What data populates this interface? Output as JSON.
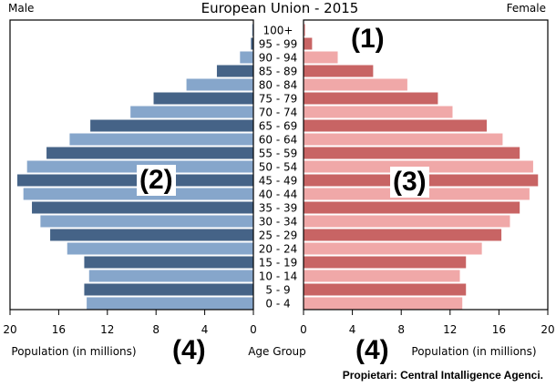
{
  "chart_data": {
    "type": "bar",
    "orientation": "horizontal",
    "subtype": "population-pyramid",
    "title": "European Union - 2015",
    "categories": [
      "100+",
      "95 - 99",
      "90 - 94",
      "85 - 89",
      "80 - 84",
      "75 - 79",
      "70 - 74",
      "65 - 69",
      "60 - 64",
      "55 - 59",
      "50 - 54",
      "45 - 49",
      "40 - 44",
      "35 - 39",
      "30 - 34",
      "25 - 29",
      "20 - 24",
      "15 - 19",
      "10 - 14",
      "5 - 9",
      "0 - 4"
    ],
    "series": [
      {
        "name": "Male",
        "values": [
          0.1,
          0.2,
          1.1,
          3.0,
          5.5,
          8.2,
          10.1,
          13.4,
          15.1,
          17.0,
          18.6,
          19.4,
          18.9,
          18.2,
          17.5,
          16.7,
          15.3,
          13.9,
          13.5,
          13.9,
          13.7
        ],
        "colors": [
          "#456387",
          "#86a6cb"
        ]
      },
      {
        "name": "Female",
        "values": [
          0.15,
          0.7,
          2.8,
          5.7,
          8.5,
          11.0,
          12.2,
          15.0,
          16.3,
          17.7,
          18.8,
          19.2,
          18.5,
          17.7,
          16.9,
          16.2,
          14.6,
          13.3,
          12.8,
          13.3,
          13.0
        ],
        "colors": [
          "#c86464",
          "#f0a8a8"
        ]
      }
    ],
    "xlabel_left": "Population (in millions)",
    "xlabel_center": "Age Group",
    "xlabel_right": "Population (in millions)",
    "xlim": [
      0,
      20
    ],
    "xticks": [
      0,
      4,
      8,
      12,
      16,
      20
    ],
    "grid": false,
    "legend": "none"
  },
  "annotations": {
    "a1": "(1)",
    "a2": "(2)",
    "a3": "(3)",
    "a4_left": "(4)",
    "a4_right": "(4)"
  },
  "source": "Propietari: Central Intalligence Agenci."
}
